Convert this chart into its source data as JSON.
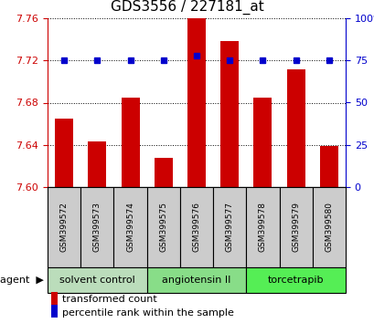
{
  "title": "GDS3556 / 227181_at",
  "samples": [
    "GSM399572",
    "GSM399573",
    "GSM399574",
    "GSM399575",
    "GSM399576",
    "GSM399577",
    "GSM399578",
    "GSM399579",
    "GSM399580"
  ],
  "bar_values": [
    7.665,
    7.643,
    7.685,
    7.628,
    7.76,
    7.738,
    7.685,
    7.712,
    7.639
  ],
  "percentile_values": [
    75,
    75,
    75,
    75,
    78,
    75,
    75,
    75,
    75
  ],
  "ylim_left": [
    7.6,
    7.76
  ],
  "ylim_right": [
    0,
    100
  ],
  "yticks_left": [
    7.6,
    7.64,
    7.68,
    7.72,
    7.76
  ],
  "yticks_right": [
    0,
    25,
    50,
    75,
    100
  ],
  "bar_color": "#cc0000",
  "dot_color": "#0000cc",
  "groups": [
    {
      "label": "solvent control",
      "start": 0,
      "end": 3,
      "color": "#bbddbb"
    },
    {
      "label": "angiotensin II",
      "start": 3,
      "end": 6,
      "color": "#88dd88"
    },
    {
      "label": "torcetrapib",
      "start": 6,
      "end": 9,
      "color": "#55ee55"
    }
  ],
  "agent_label": "agent",
  "legend_bar_label": "transformed count",
  "legend_dot_label": "percentile rank within the sample",
  "title_fontsize": 11,
  "tick_fontsize": 8,
  "sample_fontsize": 6.5,
  "group_fontsize": 8,
  "legend_fontsize": 8
}
